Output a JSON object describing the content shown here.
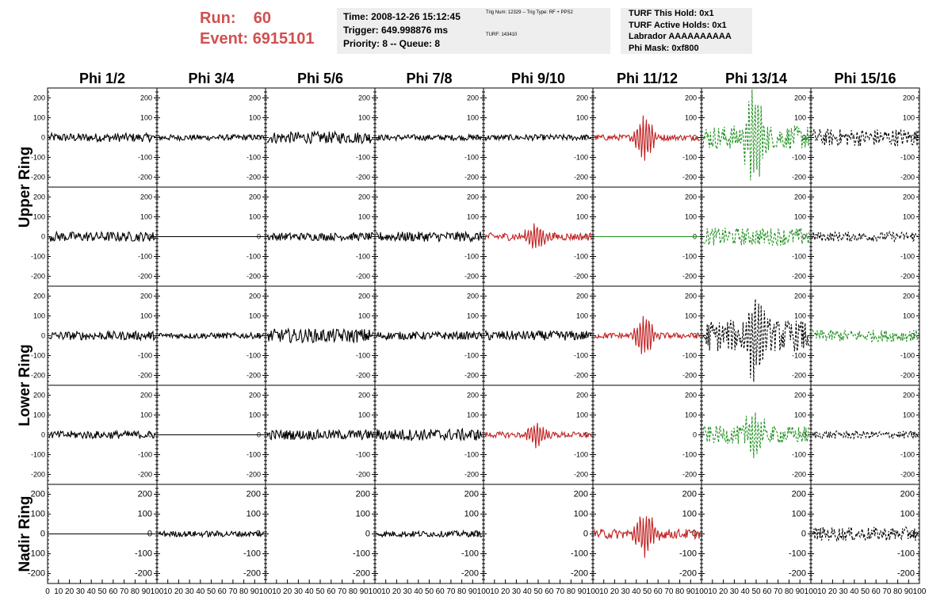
{
  "header": {
    "run_label": "Run:",
    "run_value": "60",
    "event_label": "Event:",
    "event_value": "6915101",
    "info1": [
      "Time: 2008-12-26 15:12:45",
      "Trigger: 649.998876 ms",
      "Priority: 8 -- Queue: 8"
    ],
    "info2": [
      "Trig Num: 12329 -- Trig Type: RF + PPS2",
      "TURF: 143410"
    ],
    "info3": [
      "TURF This Hold: 0x1",
      "TURF Active Holds: 0x1",
      "Labrador AAAAAAAAAA",
      "Phi Mask: 0xf800"
    ]
  },
  "colors": {
    "black": "#000000",
    "red": "#c02020",
    "green": "#209020",
    "run_text": "#d05050",
    "panel_bg": "#eeeeee"
  },
  "chart_data": {
    "type": "line",
    "columns": [
      "Phi 1/2",
      "Phi 3/4",
      "Phi 5/6",
      "Phi 7/8",
      "Phi 9/10",
      "Phi 11/12",
      "Phi 13/14",
      "Phi 15/16"
    ],
    "rows": [
      "Upper Ring",
      "",
      "Lower Ring",
      "",
      "Nadir Ring"
    ],
    "ylim": [
      -250,
      250
    ],
    "yticks": [
      -200,
      -100,
      0,
      100,
      200
    ],
    "xlim": [
      0,
      100
    ],
    "xticks_labels": [
      "0",
      "10",
      "20",
      "30",
      "40",
      "50",
      "60",
      "70",
      "80",
      "90",
      "100"
    ],
    "cells": [
      [
        {
          "amp": 22,
          "color": "black",
          "style": "solid",
          "pulse": 0
        },
        {
          "amp": 15,
          "color": "black",
          "style": "solid",
          "pulse": 0
        },
        {
          "amp": 30,
          "color": "black",
          "style": "solid",
          "pulse": 0
        },
        {
          "amp": 15,
          "color": "black",
          "style": "solid",
          "pulse": 0
        },
        {
          "amp": 15,
          "color": "black",
          "style": "solid",
          "pulse": 0
        },
        {
          "amp": 15,
          "color": "red",
          "style": "solid",
          "pulse": 110
        },
        {
          "amp": 60,
          "color": "green",
          "style": "dashed",
          "pulse": 220
        },
        {
          "amp": 45,
          "color": "black",
          "style": "dashed",
          "pulse": 0
        }
      ],
      [
        {
          "amp": 25,
          "color": "black",
          "style": "solid",
          "pulse": 0
        },
        {
          "amp": 0,
          "color": "black",
          "style": "solid",
          "pulse": 0
        },
        {
          "amp": 20,
          "color": "black",
          "style": "solid",
          "pulse": 0
        },
        {
          "amp": 25,
          "color": "black",
          "style": "solid",
          "pulse": 0
        },
        {
          "amp": 20,
          "color": "red",
          "style": "solid",
          "pulse": 60
        },
        {
          "amp": 0,
          "color": "green",
          "style": "solid",
          "pulse": 0
        },
        {
          "amp": 45,
          "color": "green",
          "style": "dashed",
          "pulse": 0
        },
        {
          "amp": 25,
          "color": "black",
          "style": "dashed",
          "pulse": 0
        }
      ],
      [
        {
          "amp": 22,
          "color": "black",
          "style": "solid",
          "pulse": 0
        },
        {
          "amp": 15,
          "color": "black",
          "style": "solid",
          "pulse": 0
        },
        {
          "amp": 35,
          "color": "black",
          "style": "solid",
          "pulse": 0
        },
        {
          "amp": 20,
          "color": "black",
          "style": "solid",
          "pulse": 0
        },
        {
          "amp": 25,
          "color": "black",
          "style": "solid",
          "pulse": 0
        },
        {
          "amp": 15,
          "color": "red",
          "style": "solid",
          "pulse": 100
        },
        {
          "amp": 80,
          "color": "black",
          "style": "dashed",
          "pulse": 200
        },
        {
          "amp": 30,
          "color": "green",
          "style": "dashed",
          "pulse": 0
        }
      ],
      [
        {
          "amp": 20,
          "color": "black",
          "style": "solid",
          "pulse": 0
        },
        {
          "amp": 0,
          "color": "black",
          "style": "solid",
          "pulse": 0
        },
        {
          "amp": 25,
          "color": "black",
          "style": "solid",
          "pulse": 0
        },
        {
          "amp": 30,
          "color": "black",
          "style": "solid",
          "pulse": 0
        },
        {
          "amp": 15,
          "color": "red",
          "style": "solid",
          "pulse": 60
        },
        {
          "amp": 0,
          "color": "black",
          "style": "none",
          "pulse": 0
        },
        {
          "amp": 45,
          "color": "green",
          "style": "dashed",
          "pulse": 120
        },
        {
          "amp": 20,
          "color": "black",
          "style": "dashed",
          "pulse": 0
        }
      ],
      [
        {
          "amp": 0,
          "color": "black",
          "style": "solid",
          "pulse": 0
        },
        {
          "amp": 15,
          "color": "black",
          "style": "solid",
          "pulse": 0
        },
        {
          "amp": 0,
          "color": "black",
          "style": "none",
          "pulse": 0
        },
        {
          "amp": 15,
          "color": "black",
          "style": "solid",
          "pulse": 0
        },
        {
          "amp": 0,
          "color": "black",
          "style": "none",
          "pulse": 0
        },
        {
          "amp": 25,
          "color": "red",
          "style": "solid",
          "pulse": 110
        },
        {
          "amp": 0,
          "color": "black",
          "style": "none",
          "pulse": 0
        },
        {
          "amp": 35,
          "color": "black",
          "style": "dashed",
          "pulse": 0
        }
      ]
    ]
  }
}
